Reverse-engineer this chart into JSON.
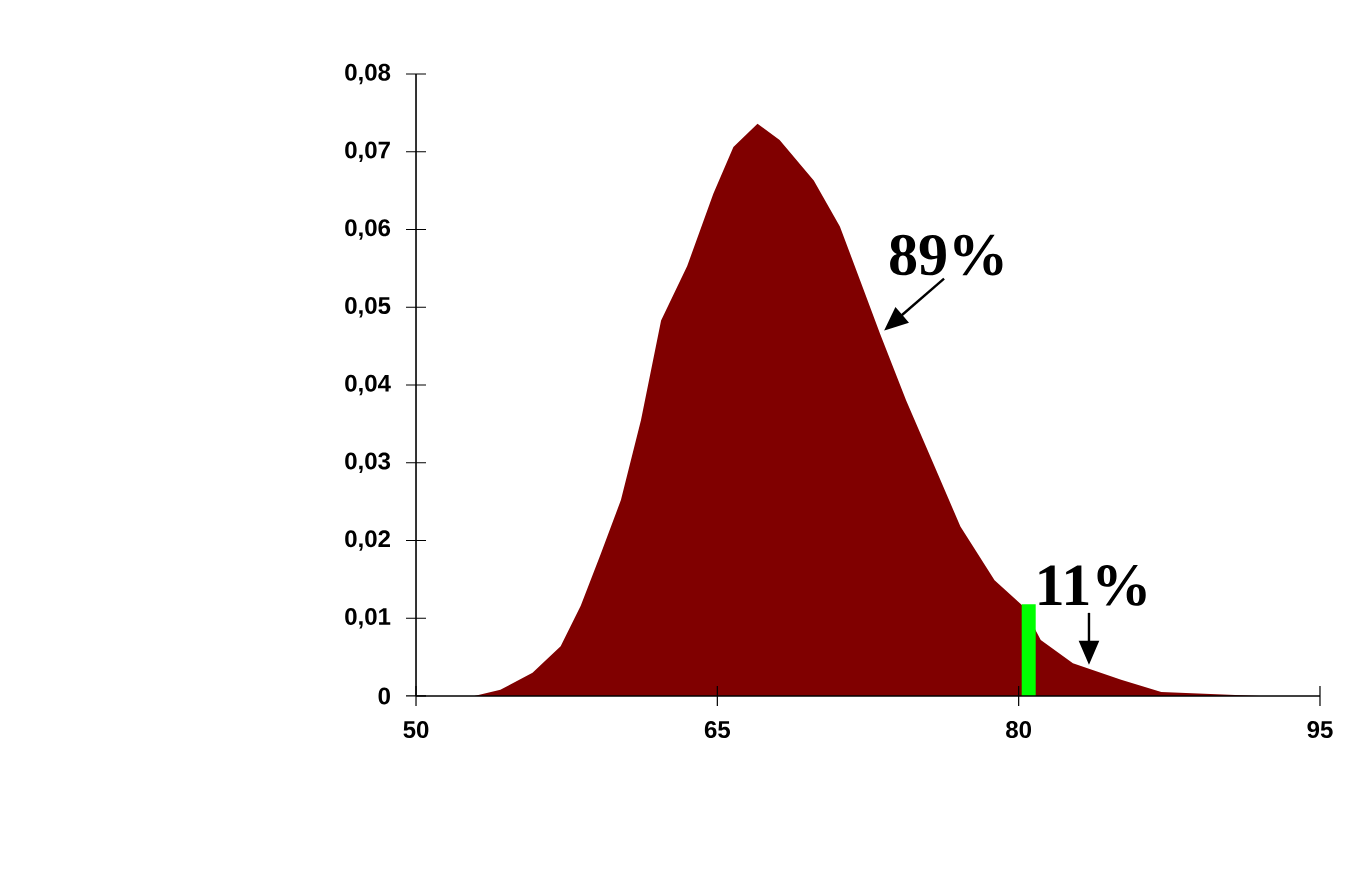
{
  "chart_data": {
    "type": "area",
    "series": [
      {
        "color": "#800000",
        "x": [
          52.9,
          54.2,
          55.8,
          57.2,
          58.2,
          59.2,
          60.2,
          61.2,
          62.2,
          63.5,
          64.8,
          65.8,
          67.0,
          68.1,
          69.8,
          71.1,
          72.1,
          73.1,
          74.4,
          75.8,
          77.1,
          78.8,
          80.2,
          81.1,
          82.7,
          85.1,
          87.1,
          92.0
        ],
        "values": [
          0,
          0.0008,
          0.003,
          0.0064,
          0.0116,
          0.0183,
          0.0252,
          0.0355,
          0.0483,
          0.0553,
          0.0646,
          0.0706,
          0.0736,
          0.0715,
          0.0663,
          0.0604,
          0.0535,
          0.0466,
          0.038,
          0.0296,
          0.0218,
          0.0149,
          0.0116,
          0.0072,
          0.0042,
          0.0021,
          0.0005,
          0
        ]
      },
      {
        "type": "bar",
        "color": "#00ff00",
        "x": [
          80.5
        ],
        "values": [
          0.0118
        ]
      }
    ],
    "xlim": [
      50,
      95
    ],
    "xticks": [
      50,
      65,
      80,
      95
    ],
    "ylim": [
      0,
      0.08
    ],
    "yticks": [
      0,
      {
        "value": 0.01,
        "label": "0,01"
      },
      {
        "value": 0.02,
        "label": "0,02"
      },
      {
        "value": 0.03,
        "label": "0,03"
      },
      {
        "value": 0.04,
        "label": "0,04"
      },
      {
        "value": 0.05,
        "label": "0,05"
      },
      {
        "value": 0.06,
        "label": "0,06"
      },
      {
        "value": 0.07,
        "label": "0,07"
      },
      {
        "value": 0.08,
        "label": "0,08"
      }
    ],
    "annotations": [
      {
        "text": "89%",
        "x": 73.3,
        "y": 0.047
      },
      {
        "text": "11%",
        "x": 83.5,
        "y": 0.004
      }
    ]
  }
}
